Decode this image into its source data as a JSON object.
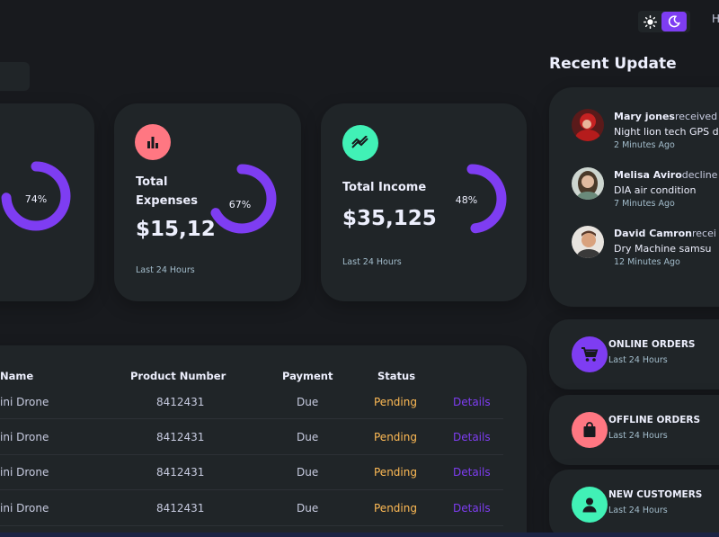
{
  "topbar": {
    "cut_text": "H"
  },
  "cards": [
    {
      "id": "sales",
      "percent": "74%",
      "fraction": 0.74
    },
    {
      "id": "expenses",
      "title": "Total Expenses",
      "value": "$15,12",
      "percent": "67%",
      "fraction": 0.67,
      "footer": "Last 24 Hours",
      "icon": "bar-chart-icon",
      "color": "#ff7782"
    },
    {
      "id": "income",
      "title": "Total Income",
      "value": "$35,125",
      "percent": "48%",
      "fraction": 0.48,
      "footer": "Last 24 Hours",
      "icon": "trend-line-icon",
      "color": "#41f1b6"
    }
  ],
  "ring_color": "#7e3df2",
  "recent": {
    "title": "Recent Update",
    "updates": [
      {
        "name": "Mary jones",
        "action": "received",
        "detail": "Night lion tech GPS d",
        "time": "2 Minutes Ago"
      },
      {
        "name": "Melisa Aviro",
        "action": "decline",
        "detail": "DIA air condition",
        "time": "7 Minutes Ago"
      },
      {
        "name": "David Camron",
        "action": "recei",
        "detail": "Dry Machine samsu",
        "time": "12 Minutes Ago"
      }
    ]
  },
  "analytics": [
    {
      "title": "ONLINE ORDERS",
      "sub": "Last 24 Hours",
      "icon": "shopping-cart-icon",
      "color": "#7e3df2"
    },
    {
      "title": "OFFLINE ORDERS",
      "sub": "Last 24 Hours",
      "icon": "shopping-bag-icon",
      "color": "#ff7782"
    },
    {
      "title": "NEW CUSTOMERS",
      "sub": "Last 24 Hours",
      "icon": "person-icon",
      "color": "#41f1b6"
    }
  ],
  "orders": {
    "headers": [
      "Name",
      "Product Number",
      "Payment",
      "Status"
    ],
    "rows": [
      {
        "name": "ini Drone",
        "number": "8412431",
        "payment": "Due",
        "status": "Pending",
        "action": "Details"
      },
      {
        "name": "ini Drone",
        "number": "8412431",
        "payment": "Due",
        "status": "Pending",
        "action": "Details"
      },
      {
        "name": "ini Drone",
        "number": "8412431",
        "payment": "Due",
        "status": "Pending",
        "action": "Details"
      },
      {
        "name": "ini Drone",
        "number": "8412431",
        "payment": "Due",
        "status": "Pending",
        "action": "Details"
      }
    ]
  },
  "colors": {
    "pending": "#ffbb55",
    "details": "#7e3df2",
    "background": "#181a1e",
    "card": "#202528"
  }
}
